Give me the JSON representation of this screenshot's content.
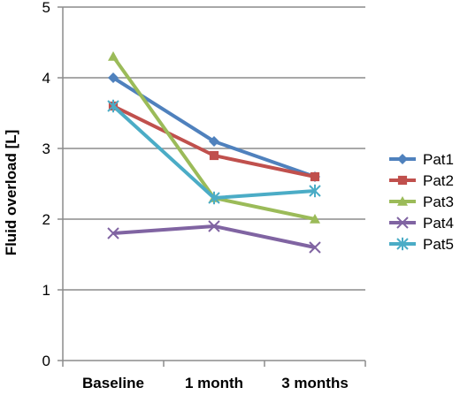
{
  "chart_data": {
    "type": "line",
    "title": "",
    "xlabel": "",
    "ylabel": "Fluid overload [L]",
    "categories": [
      "Baseline",
      "1 month",
      "3 months"
    ],
    "ylim": [
      0,
      5
    ],
    "yticks": [
      0,
      1,
      2,
      3,
      4,
      5
    ],
    "grid": true,
    "legend_position": "right",
    "series": [
      {
        "name": "Pat1",
        "values": [
          4.0,
          3.1,
          2.6
        ],
        "color": "#4F81BD",
        "marker": "diamond"
      },
      {
        "name": "Pat2",
        "values": [
          3.6,
          2.9,
          2.6
        ],
        "color": "#C0504D",
        "marker": "square"
      },
      {
        "name": "Pat3",
        "values": [
          4.3,
          2.3,
          2.0
        ],
        "color": "#9BBB59",
        "marker": "triangle"
      },
      {
        "name": "Pat4",
        "values": [
          1.8,
          1.9,
          1.6
        ],
        "color": "#8064A2",
        "marker": "x"
      },
      {
        "name": "Pat5",
        "values": [
          3.6,
          2.3,
          2.4
        ],
        "color": "#4BACC6",
        "marker": "star"
      }
    ]
  }
}
